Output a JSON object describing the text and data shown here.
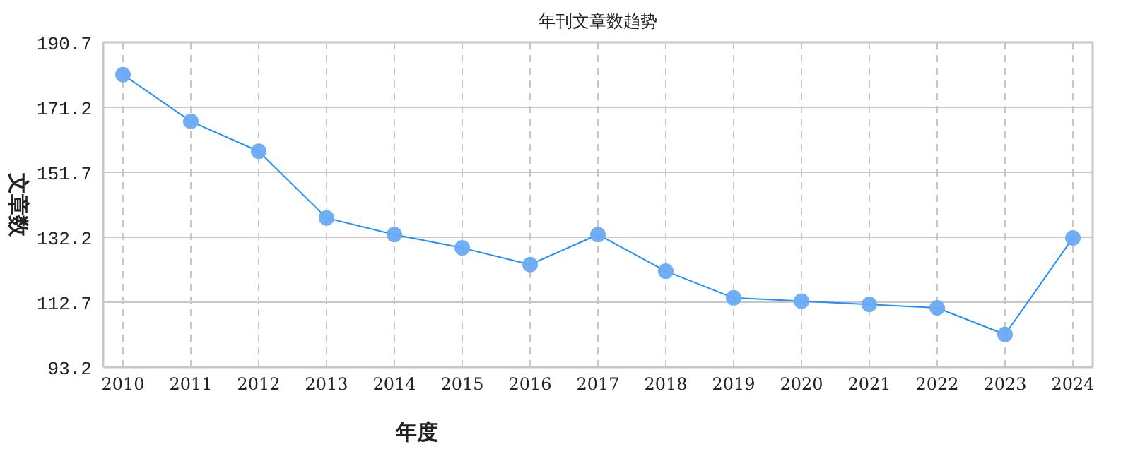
{
  "chart_data": {
    "type": "line",
    "title": "年刊文章数趋势",
    "xlabel": "年度",
    "ylabel": "文章数",
    "categories": [
      "2010",
      "2011",
      "2012",
      "2013",
      "2014",
      "2015",
      "2016",
      "2017",
      "2018",
      "2019",
      "2020",
      "2021",
      "2022",
      "2023",
      "2024"
    ],
    "series": [
      {
        "color": "#1e90ff",
        "values": [
          181,
          167,
          158,
          138,
          133,
          129,
          124,
          133,
          122,
          114,
          113,
          112,
          111,
          103,
          132
        ]
      }
    ],
    "ylim": [
      93.2,
      190.7
    ],
    "yticks": [
      93.2,
      112.7,
      132.2,
      151.7,
      171.2,
      190.7
    ],
    "grid": true,
    "marker": "circle",
    "line_style": "solid"
  }
}
